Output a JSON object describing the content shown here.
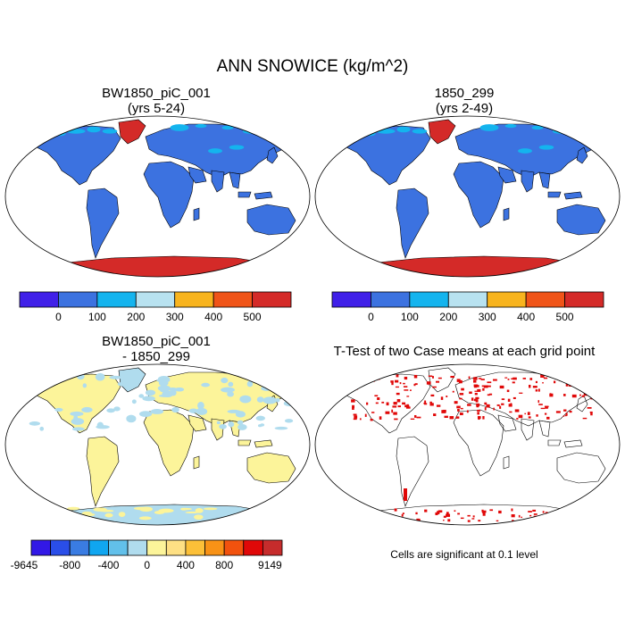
{
  "title": "ANN SNOWICE (kg/m^2)",
  "panels": {
    "top_left": {
      "line1": "BW1850_piC_001",
      "line2": "(yrs 5-24)"
    },
    "top_right": {
      "line1": "1850_299",
      "line2": "(yrs 2-49)"
    },
    "bottom_left": {
      "line1": "BW1850_piC_001",
      "line2": "- 1850_299"
    },
    "bottom_right": {
      "line1": "T-Test of two Case means at each grid point"
    }
  },
  "colorbar_abs": {
    "colors": [
      "#4020e8",
      "#3c72e0",
      "#14b4ee",
      "#b8e2f0",
      "#f8b41e",
      "#f05418",
      "#d42a28"
    ],
    "labels": [
      "0",
      "100",
      "200",
      "300",
      "400",
      "500"
    ]
  },
  "colorbar_diff": {
    "colors": [
      "#3218e6",
      "#2a4ee8",
      "#3a7ce2",
      "#10a6f0",
      "#62c0ea",
      "#b0dcee",
      "#fcf49a",
      "#fee084",
      "#fcc038",
      "#f89216",
      "#f2520e",
      "#e00808",
      "#c62c2c"
    ],
    "labels": [
      "-9645",
      "-800",
      "-400",
      "0",
      "400",
      "800",
      "9149"
    ]
  },
  "significance_note": "Cells are significant at 0.1 level",
  "map_colors": {
    "land_abs": "#3c72e0",
    "snow_abs": "#14b4ee",
    "ice_abs": "#d42a28",
    "land_diff": "#fcf49a",
    "diff_cool": "#b0dcee",
    "significant": "#e00808"
  }
}
